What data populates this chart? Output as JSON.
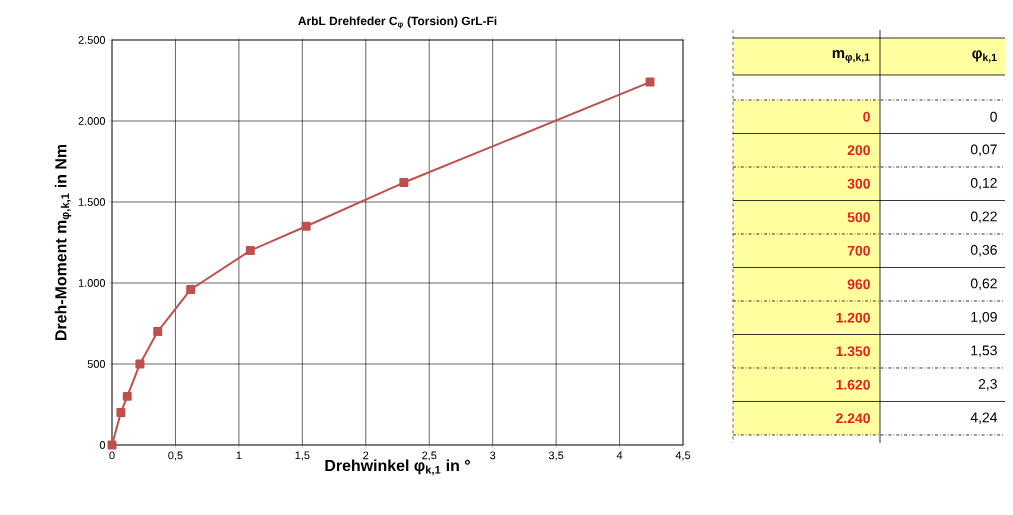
{
  "chart_data": [
    {
      "type": "line",
      "title": "ArbL Drehfeder C$_{φ}$ (Torsion) GrL-Fi",
      "xlabel": "Drehwinkel φ$_{k,1}$ in °",
      "ylabel": "Dreh-Moment m$_{φ,k,1}$ in Nm",
      "x": [
        0,
        0.07,
        0.12,
        0.22,
        0.36,
        0.62,
        1.09,
        1.53,
        2.3,
        4.24
      ],
      "series": [
        {
          "color": "#c0504d",
          "values": [
            0,
            200,
            300,
            500,
            700,
            960,
            1200,
            1350,
            1620,
            2240
          ]
        }
      ],
      "xlim": [
        0,
        4.5
      ],
      "ylim": [
        0,
        2500
      ],
      "xticks": [
        0,
        {
          "value": 0.5,
          "label": "0,5"
        },
        1,
        {
          "value": 1.5,
          "label": "1,5"
        },
        2,
        {
          "value": 2.5,
          "label": "2,5"
        },
        3,
        {
          "value": 3.5,
          "label": "3,5"
        },
        4,
        {
          "value": 4.5,
          "label": "4,5"
        }
      ],
      "yticks": [
        0,
        500,
        {
          "value": 1000,
          "label": "1.000"
        },
        {
          "value": 1500,
          "label": "1.500"
        },
        {
          "value": 2000,
          "label": "2.000"
        },
        {
          "value": 2500,
          "label": "2.500"
        }
      ],
      "grid": true,
      "marker": "square",
      "line_style": "solid"
    },
    {
      "type": "other",
      "annotations": [
        "m$_{φ,k,1}$",
        "φ$_{k,1}$",
        "0",
        "0",
        "200",
        "0,07",
        "300",
        "0,12",
        "500",
        "0,22",
        "700",
        "0,36",
        "960",
        "0,62",
        "1.200",
        "1,09",
        "1.350",
        "1,53",
        "1.620",
        "2,3",
        "2.240",
        "4,24"
      ]
    }
  ]
}
